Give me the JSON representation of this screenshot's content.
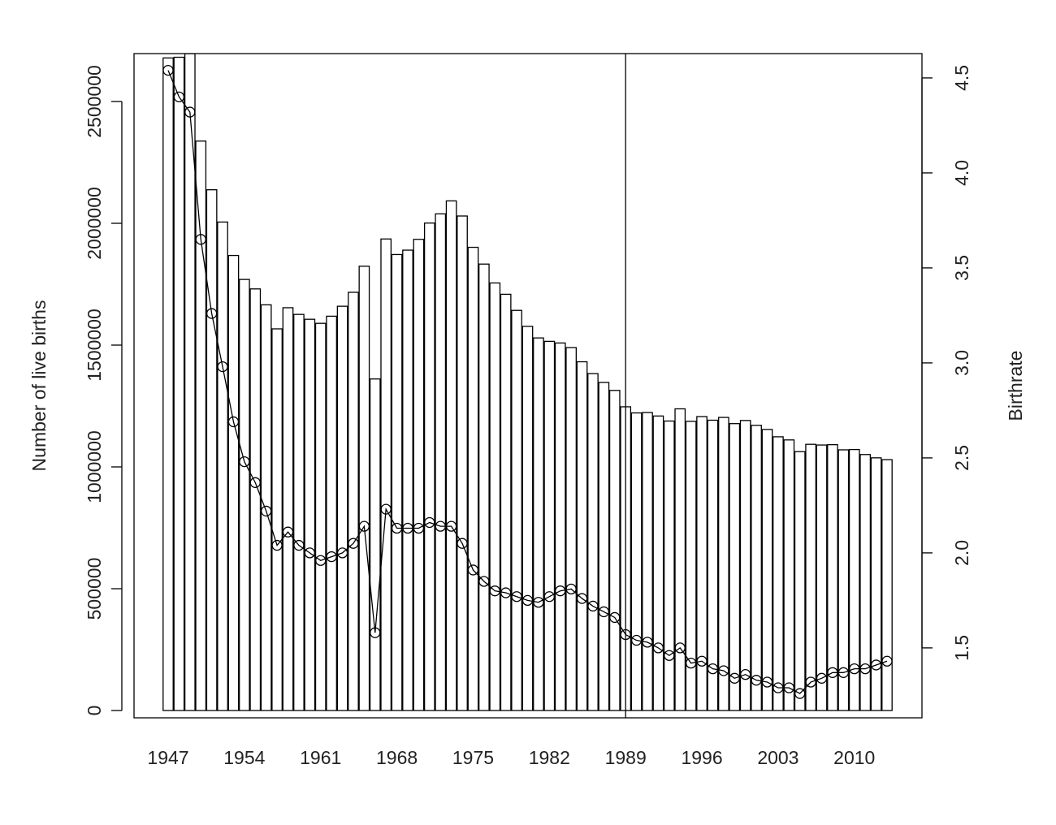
{
  "chart_data": {
    "type": "bar_line",
    "y_label": "Number of live births",
    "y2_label": "Birthrate",
    "categories": [
      "1947",
      null,
      null,
      null,
      null,
      null,
      null,
      "1954",
      null,
      null,
      null,
      null,
      null,
      null,
      "1961",
      null,
      null,
      null,
      null,
      null,
      null,
      "1968",
      null,
      null,
      null,
      null,
      null,
      null,
      "1975",
      null,
      null,
      null,
      null,
      null,
      null,
      "1982",
      null,
      null,
      null,
      null,
      null,
      null,
      "1989",
      null,
      null,
      null,
      null,
      null,
      null,
      "1996",
      null,
      null,
      null,
      null,
      null,
      null,
      "2003",
      null,
      null,
      null,
      null,
      null,
      null,
      "2010",
      null,
      null,
      null
    ],
    "series": [
      {
        "name": "Number of live births",
        "kind": "bar",
        "color": "#000000",
        "fill": "#ffffff",
        "axis": "y",
        "values": [
          2678792,
          2681624,
          2696638,
          2337507,
          2137689,
          2005162,
          1868040,
          1769580,
          1730692,
          1665278,
          1566713,
          1653469,
          1626088,
          1606041,
          1589372,
          1618616,
          1659521,
          1716761,
          1823697,
          1360974,
          1935647,
          1871839,
          1889815,
          1934239,
          2000973,
          2038682,
          2091983,
          2029989,
          1901440,
          1832617,
          1755100,
          1708643,
          1642580,
          1576889,
          1529455,
          1515392,
          1508687,
          1489780,
          1431577,
          1382946,
          1346658,
          1314006,
          1246802,
          1221585,
          1223245,
          1208989,
          1188282,
          1238328,
          1187064,
          1206555,
          1191665,
          1203147,
          1177669,
          1190547,
          1170662,
          1153855,
          1123610,
          1110721,
          1062530,
          1092674,
          1089818,
          1091156,
          1070035,
          1071304,
          1050806,
          1037231,
          1029816
        ]
      },
      {
        "name": "Birthrate",
        "kind": "line",
        "color": "#000000",
        "axis": "y2",
        "values": [
          4.54,
          4.4,
          4.32,
          3.65,
          3.26,
          2.98,
          2.69,
          2.48,
          2.37,
          2.22,
          2.04,
          2.11,
          2.04,
          2.0,
          1.96,
          1.98,
          2.0,
          2.05,
          2.14,
          1.58,
          2.23,
          2.13,
          2.13,
          2.13,
          2.16,
          2.14,
          2.14,
          2.05,
          1.91,
          1.85,
          1.8,
          1.79,
          1.77,
          1.75,
          1.74,
          1.77,
          1.8,
          1.81,
          1.76,
          1.72,
          1.69,
          1.66,
          1.57,
          1.54,
          1.53,
          1.5,
          1.46,
          1.5,
          1.42,
          1.43,
          1.39,
          1.38,
          1.34,
          1.36,
          1.33,
          1.32,
          1.29,
          1.29,
          1.26,
          1.32,
          1.34,
          1.37,
          1.37,
          1.39,
          1.39,
          1.41,
          1.43
        ]
      }
    ],
    "ylim": [
      -30000,
      2696667
    ],
    "yticks": [
      0,
      500000,
      1000000,
      1500000,
      2000000,
      2500000
    ],
    "y2lim": [
      1.132,
      4.628
    ],
    "y2ticks": [
      1.5,
      {
        "value": 2,
        "label": "2.0"
      },
      2.5,
      {
        "value": 3,
        "label": "3.0"
      },
      3.5,
      {
        "value": 4,
        "label": "4.0"
      },
      4.5
    ],
    "vline": "1989"
  }
}
